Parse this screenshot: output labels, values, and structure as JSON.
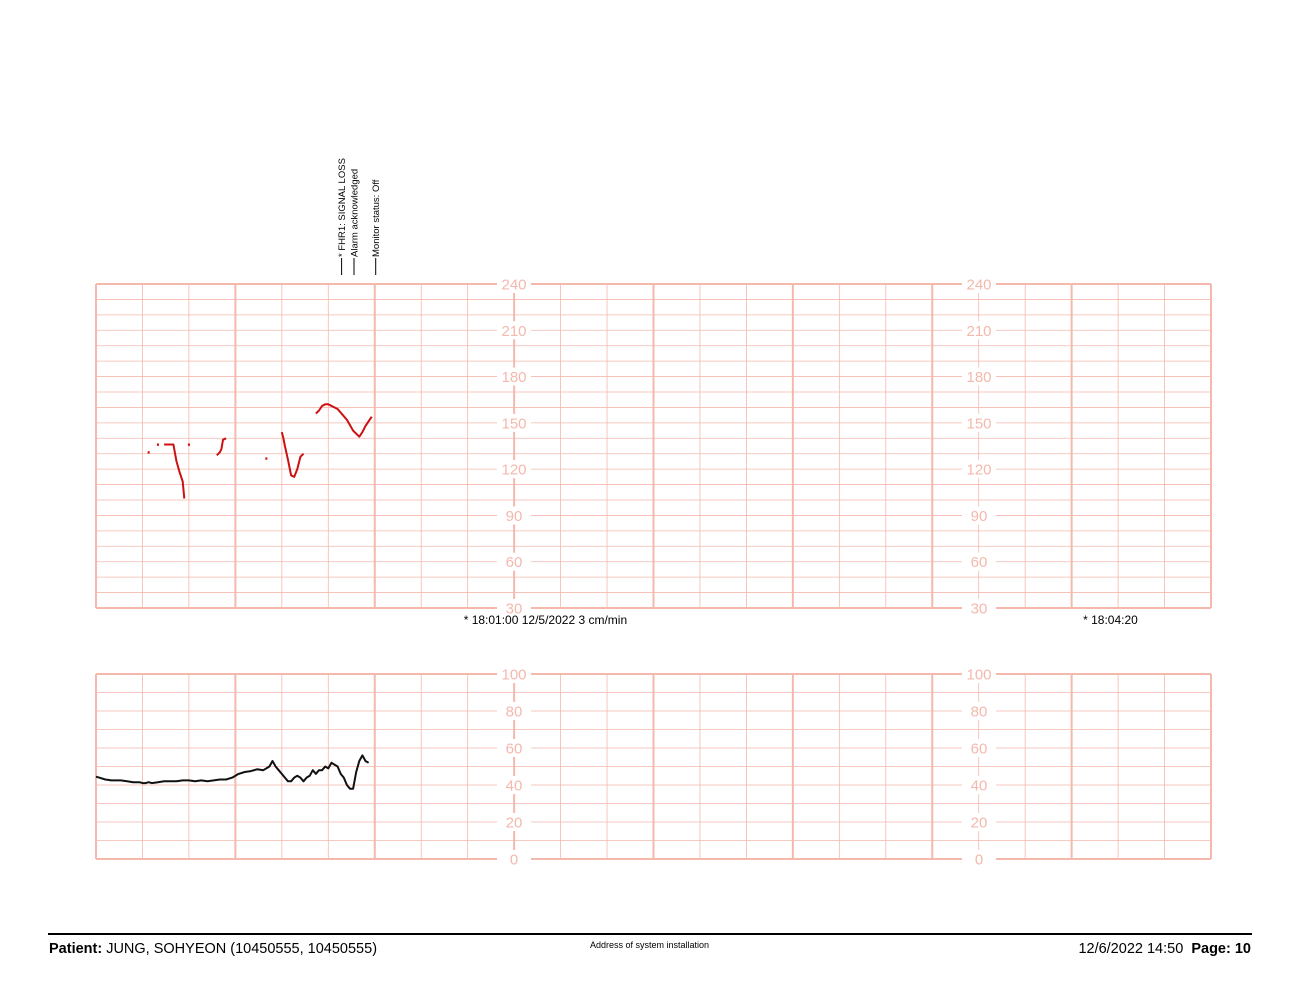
{
  "colors": {
    "grid": "#f4b8ad",
    "fhr_trace": "#cc1111",
    "toco_trace": "#111111"
  },
  "events": [
    {
      "label": "* FHR1: SIGNAL LOSS",
      "time": "18:00:18"
    },
    {
      "label": "Alarm acknowledged",
      "time": "18:00:22"
    },
    {
      "label": "Monitor status: Off",
      "time": "18:00:29"
    }
  ],
  "strip_markers": [
    {
      "text": "* 18:01:00  12/5/2022  3 cm/min",
      "time": "18:01:00"
    },
    {
      "text": "* 18:04:20",
      "time": "18:04:20"
    }
  ],
  "chart_data": [
    {
      "type": "line",
      "id": "fhr",
      "y_scale_labels": [
        "240",
        "210",
        "180",
        "150",
        "120",
        "90",
        "60",
        "30"
      ],
      "ylim": [
        30,
        240
      ],
      "x_time_range": [
        "17:59:00",
        "18:05:00"
      ],
      "series": [
        {
          "segments": [
            {
              "x": [
                "17:59:17"
              ],
              "y": [
                131
              ]
            },
            {
              "x": [
                "17:59:20"
              ],
              "y": [
                136
              ]
            },
            {
              "x": [
                "17:59:22",
                "17:59:25",
                "17:59:26",
                "17:59:27",
                "17:59:28",
                "17:59:28.5"
              ],
              "y": [
                136,
                136,
                125,
                118,
                112,
                101
              ]
            },
            {
              "x": [
                "17:59:30"
              ],
              "y": [
                136
              ]
            },
            {
              "x": [
                "17:59:39",
                "17:59:40",
                "17:59:40.5",
                "17:59:41",
                "17:59:42"
              ],
              "y": [
                129,
                131,
                133,
                139,
                140
              ]
            },
            {
              "x": [
                "17:59:55"
              ],
              "y": [
                127
              ]
            },
            {
              "x": [
                "18:00:00",
                "18:00:00.5",
                "18:00:01",
                "18:00:02",
                "18:00:03",
                "18:00:04",
                "18:00:05",
                "18:00:06",
                "18:00:07"
              ],
              "y": [
                144,
                140,
                135,
                126,
                116,
                115,
                120,
                128,
                130
              ]
            },
            {
              "x": [
                "18:00:11",
                "18:00:12",
                "18:00:13",
                "18:00:14",
                "18:00:15",
                "18:00:16",
                "18:00:18",
                "18:00:21",
                "18:00:23",
                "18:00:25",
                "18:00:26",
                "18:00:27",
                "18:00:29"
              ],
              "y": [
                156,
                158,
                161,
                162,
                162,
                161,
                159,
                152,
                145,
                141,
                144,
                148,
                154
              ]
            }
          ]
        }
      ]
    },
    {
      "type": "line",
      "id": "toco",
      "y_scale_labels": [
        "100",
        "80",
        "60",
        "40",
        "20",
        "0"
      ],
      "ylim": [
        0,
        100
      ],
      "x_time_range": [
        "17:59:00",
        "18:05:00"
      ],
      "series": [
        {
          "segments": [
            {
              "x": [
                "17:59:00",
                "17:59:01",
                "17:59:03",
                "17:59:05",
                "17:59:08",
                "17:59:10",
                "17:59:12",
                "17:59:14",
                "17:59:15",
                "17:59:16",
                "17:59:17",
                "17:59:18",
                "17:59:20",
                "17:59:22",
                "17:59:24",
                "17:59:26",
                "17:59:28",
                "17:59:30",
                "17:59:32",
                "17:59:34",
                "17:59:36",
                "17:59:38",
                "17:59:40",
                "17:59:42",
                "17:59:44",
                "17:59:46",
                "17:59:48",
                "17:59:50",
                "17:59:52",
                "17:59:54",
                "17:59:56",
                "17:59:57",
                "17:59:58",
                "17:59:59",
                "18:00:00",
                "18:00:01",
                "18:00:02",
                "18:00:03",
                "18:00:04",
                "18:00:05",
                "18:00:06",
                "18:00:07",
                "18:00:08",
                "18:00:09",
                "18:00:10",
                "18:00:11",
                "18:00:12",
                "18:00:13",
                "18:00:14",
                "18:00:15",
                "18:00:16",
                "18:00:17",
                "18:00:18",
                "18:00:19",
                "18:00:20",
                "18:00:21",
                "18:00:22",
                "18:00:23",
                "18:00:24",
                "18:00:25",
                "18:00:26",
                "18:00:27",
                "18:00:28"
              ],
              "y": [
                44.5,
                44,
                43,
                42.5,
                42.5,
                42,
                41.5,
                41.5,
                41,
                41,
                41.5,
                41,
                41.5,
                42,
                42,
                42,
                42.5,
                42.5,
                42,
                42.5,
                42,
                42.5,
                43,
                43,
                44,
                46,
                47,
                47.5,
                48.5,
                48,
                50,
                53,
                50,
                48,
                46,
                44,
                42,
                42,
                44,
                45,
                44,
                42,
                44,
                45,
                48,
                46,
                48,
                48,
                50,
                49,
                52,
                51,
                50,
                46,
                44,
                40,
                38,
                38,
                47,
                53,
                56,
                53,
                52
              ]
            }
          ]
        }
      ]
    }
  ],
  "footer": {
    "patient_label": "Patient:",
    "patient_value": "JUNG, SOHYEON (10450555, 10450555)",
    "address": "Address of system installation",
    "datetime": "12/6/2022 14:50",
    "page_label": "Page:",
    "page_number": "10"
  }
}
